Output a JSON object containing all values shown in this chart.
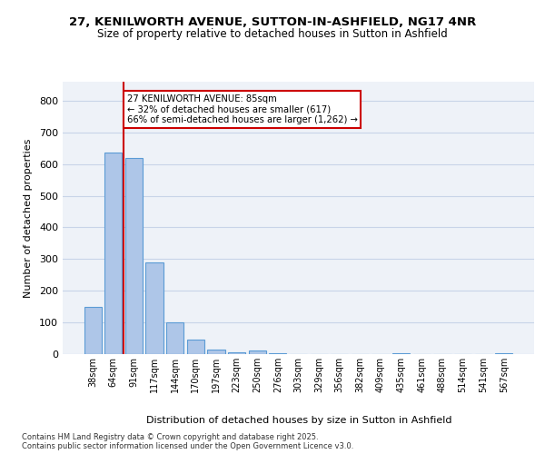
{
  "title_line1": "27, KENILWORTH AVENUE, SUTTON-IN-ASHFIELD, NG17 4NR",
  "title_line2": "Size of property relative to detached houses in Sutton in Ashfield",
  "xlabel": "Distribution of detached houses by size in Sutton in Ashfield",
  "ylabel": "Number of detached properties",
  "categories": [
    "38sqm",
    "64sqm",
    "91sqm",
    "117sqm",
    "144sqm",
    "170sqm",
    "197sqm",
    "223sqm",
    "250sqm",
    "276sqm",
    "303sqm",
    "329sqm",
    "356sqm",
    "382sqm",
    "409sqm",
    "435sqm",
    "461sqm",
    "488sqm",
    "514sqm",
    "541sqm",
    "567sqm"
  ],
  "bar_heights": [
    150,
    635,
    620,
    290,
    100,
    45,
    15,
    5,
    12,
    2,
    0,
    0,
    0,
    0,
    0,
    2,
    0,
    0,
    0,
    0,
    2
  ],
  "bar_color": "#aec6e8",
  "bar_edge_color": "#5b9bd5",
  "grid_color": "#c8d4e8",
  "background_color": "#eef2f8",
  "vline_x_bar_index": 1.5,
  "vline_color": "#cc0000",
  "annotation_text": "27 KENILWORTH AVENUE: 85sqm\n← 32% of detached houses are smaller (617)\n66% of semi-detached houses are larger (1,262) →",
  "annotation_box_color": "#cc0000",
  "ylim": [
    0,
    860
  ],
  "yticks": [
    0,
    100,
    200,
    300,
    400,
    500,
    600,
    700,
    800
  ],
  "footer_line1": "Contains HM Land Registry data © Crown copyright and database right 2025.",
  "footer_line2": "Contains public sector information licensed under the Open Government Licence v3.0."
}
